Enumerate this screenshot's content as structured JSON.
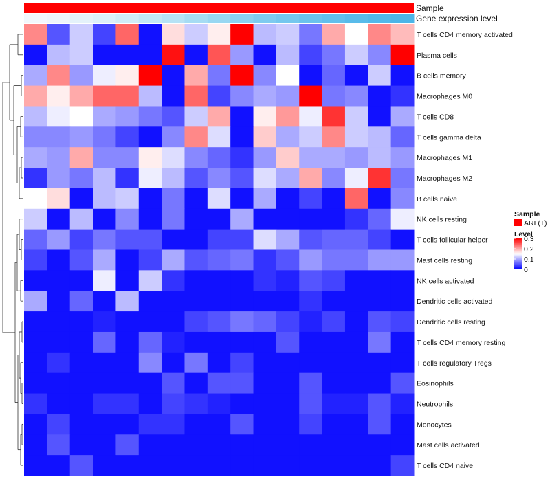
{
  "chart_data": {
    "type": "heatmap",
    "annotations": {
      "sample_label": "Sample",
      "expression_label": "Gene expression level",
      "sample_color": "#ff0000"
    },
    "columns": 17,
    "expression_colors": [
      "#f2f7fc",
      "#eef5fb",
      "#e4f2fa",
      "#dcf0f9",
      "#d0ecf8",
      "#c2e7f6",
      "#b6e2f5",
      "#a6dcf3",
      "#98d7f2",
      "#8ad1f0",
      "#7ecbef",
      "#74c7ee",
      "#6bc2ec",
      "#62bfeb",
      "#59bbea",
      "#52b8e9",
      "#4cb5e8"
    ],
    "rows": [
      {
        "name": "T cells CD4 memory activated",
        "values": [
          0.22,
          0.05,
          0.12,
          0.04,
          0.24,
          0.01,
          0.17,
          0.12,
          0.16,
          0.31,
          0.11,
          0.12,
          0.07,
          0.2,
          0.15,
          0.22,
          0.19
        ]
      },
      {
        "name": "Plasma cells",
        "values": [
          0.01,
          0.11,
          0.12,
          0.01,
          0.01,
          0.01,
          0.29,
          0.01,
          0.25,
          0.09,
          0.01,
          0.11,
          0.04,
          0.07,
          0.12,
          0.08,
          0.3
        ]
      },
      {
        "name": "B cells memory",
        "values": [
          0.1,
          0.22,
          0.09,
          0.14,
          0.16,
          0.3,
          0.01,
          0.2,
          0.07,
          0.3,
          0.08,
          0.15,
          0.01,
          0.06,
          0.01,
          0.12,
          0.01
        ]
      },
      {
        "name": "Macrophages M0",
        "values": [
          0.2,
          0.16,
          0.2,
          0.24,
          0.24,
          0.11,
          0.01,
          0.24,
          0.04,
          0.08,
          0.1,
          0.09,
          0.31,
          0.07,
          0.08,
          0.01,
          0.03
        ]
      },
      {
        "name": "T cells CD8",
        "values": [
          0.11,
          0.14,
          0.15,
          0.1,
          0.09,
          0.07,
          0.05,
          0.12,
          0.2,
          0.01,
          0.16,
          0.21,
          0.14,
          0.27,
          0.12,
          0.01,
          0.1
        ]
      },
      {
        "name": "T cells gamma delta",
        "values": [
          0.08,
          0.08,
          0.09,
          0.07,
          0.04,
          0.01,
          0.08,
          0.22,
          0.13,
          0.01,
          0.18,
          0.1,
          0.12,
          0.22,
          0.12,
          0.11,
          0.06
        ]
      },
      {
        "name": "Macrophages M1",
        "values": [
          0.1,
          0.09,
          0.2,
          0.08,
          0.08,
          0.16,
          0.13,
          0.08,
          0.06,
          0.03,
          0.09,
          0.18,
          0.1,
          0.1,
          0.09,
          0.11,
          0.09
        ]
      },
      {
        "name": "Macrophages M2",
        "values": [
          0.03,
          0.09,
          0.07,
          0.11,
          0.03,
          0.14,
          0.11,
          0.05,
          0.08,
          0.05,
          0.13,
          0.1,
          0.2,
          0.08,
          0.14,
          0.27,
          0.07
        ]
      },
      {
        "name": "B cells naive",
        "values": [
          0.15,
          0.17,
          0.01,
          0.11,
          0.12,
          0.01,
          0.07,
          0.01,
          0.13,
          0.01,
          0.1,
          0.01,
          0.04,
          0.01,
          0.24,
          0.01,
          0.08
        ]
      },
      {
        "name": "NK cells resting",
        "values": [
          0.12,
          0.01,
          0.11,
          0.01,
          0.08,
          0.01,
          0.07,
          0.01,
          0.01,
          0.1,
          0.01,
          0.01,
          0.01,
          0.01,
          0.03,
          0.06,
          0.14
        ]
      },
      {
        "name": "T cells follicular helper",
        "values": [
          0.06,
          0.09,
          0.04,
          0.07,
          0.05,
          0.05,
          0.01,
          0.01,
          0.04,
          0.04,
          0.13,
          0.1,
          0.05,
          0.06,
          0.06,
          0.04,
          0.01
        ]
      },
      {
        "name": "Mast cells resting",
        "values": [
          0.04,
          0.01,
          0.05,
          0.1,
          0.01,
          0.04,
          0.1,
          0.05,
          0.06,
          0.07,
          0.03,
          0.05,
          0.09,
          0.07,
          0.07,
          0.09,
          0.09
        ]
      },
      {
        "name": "NK cells activated",
        "values": [
          0.01,
          0.01,
          0.01,
          0.14,
          0.01,
          0.12,
          0.03,
          0.01,
          0.01,
          0.01,
          0.03,
          0.02,
          0.05,
          0.04,
          0.01,
          0.01,
          0.01
        ]
      },
      {
        "name": "Dendritic cells activated",
        "values": [
          0.1,
          0.01,
          0.06,
          0.01,
          0.11,
          0.01,
          0.01,
          0.01,
          0.01,
          0.01,
          0.01,
          0.01,
          0.03,
          0.01,
          0.01,
          0.01,
          0.01
        ]
      },
      {
        "name": "Dendritic cells resting",
        "values": [
          0.01,
          0.01,
          0.01,
          0.02,
          0.01,
          0.01,
          0.01,
          0.04,
          0.05,
          0.07,
          0.06,
          0.04,
          0.02,
          0.04,
          0.01,
          0.05,
          0.04
        ]
      },
      {
        "name": "T cells CD4 memory resting",
        "values": [
          0.01,
          0.01,
          0.01,
          0.06,
          0.01,
          0.06,
          0.02,
          0.01,
          0.01,
          0.01,
          0.01,
          0.05,
          0.01,
          0.01,
          0.01,
          0.07,
          0.01
        ]
      },
      {
        "name": "T cells regulatory  Tregs",
        "values": [
          0.01,
          0.03,
          0.01,
          0.01,
          0.01,
          0.08,
          0.01,
          0.07,
          0.01,
          0.04,
          0.01,
          0.01,
          0.01,
          0.01,
          0.01,
          0.01,
          0.01
        ]
      },
      {
        "name": "Eosinophils",
        "values": [
          0.01,
          0.01,
          0.01,
          0.01,
          0.01,
          0.01,
          0.05,
          0.01,
          0.05,
          0.05,
          0.01,
          0.01,
          0.05,
          0.01,
          0.01,
          0.01,
          0.05
        ]
      },
      {
        "name": "Neutrophils",
        "values": [
          0.03,
          0.01,
          0.01,
          0.03,
          0.03,
          0.01,
          0.04,
          0.03,
          0.02,
          0.01,
          0.01,
          0.01,
          0.05,
          0.02,
          0.02,
          0.05,
          0.02
        ]
      },
      {
        "name": "Monocytes",
        "values": [
          0.01,
          0.04,
          0.01,
          0.01,
          0.01,
          0.03,
          0.03,
          0.01,
          0.01,
          0.05,
          0.01,
          0.01,
          0.04,
          0.01,
          0.01,
          0.05,
          0.01
        ]
      },
      {
        "name": "Mast cells activated",
        "values": [
          0.01,
          0.05,
          0.01,
          0.01,
          0.05,
          0.01,
          0.01,
          0.01,
          0.01,
          0.01,
          0.01,
          0.01,
          0.01,
          0.01,
          0.01,
          0.01,
          0.01
        ]
      },
      {
        "name": "T cells CD4 naive",
        "values": [
          0.01,
          0.01,
          0.05,
          0.01,
          0.01,
          0.01,
          0.01,
          0.01,
          0.01,
          0.01,
          0.01,
          0.01,
          0.01,
          0.01,
          0.01,
          0.01,
          0.04
        ]
      }
    ],
    "color_scale": {
      "min": 0,
      "max": 0.3,
      "low": "#0000ff",
      "mid": "#ffffff",
      "high": "#ff0000",
      "mid_value": 0.15
    },
    "dendrogram": {
      "order": [
        0,
        1,
        2,
        3,
        4,
        5,
        6,
        7,
        8,
        9,
        10,
        11,
        12,
        13,
        14,
        15,
        16,
        17,
        18,
        19,
        20,
        21
      ]
    },
    "legend": {
      "sample_title": "Sample",
      "sample_item": "ARL(+)",
      "sample_item_color": "#ff0000",
      "level_title": "Level",
      "ticks": [
        "0.3",
        "0.2",
        "0.1",
        "0"
      ],
      "tick_values": [
        0.3,
        0.2,
        0.1,
        0
      ]
    }
  }
}
